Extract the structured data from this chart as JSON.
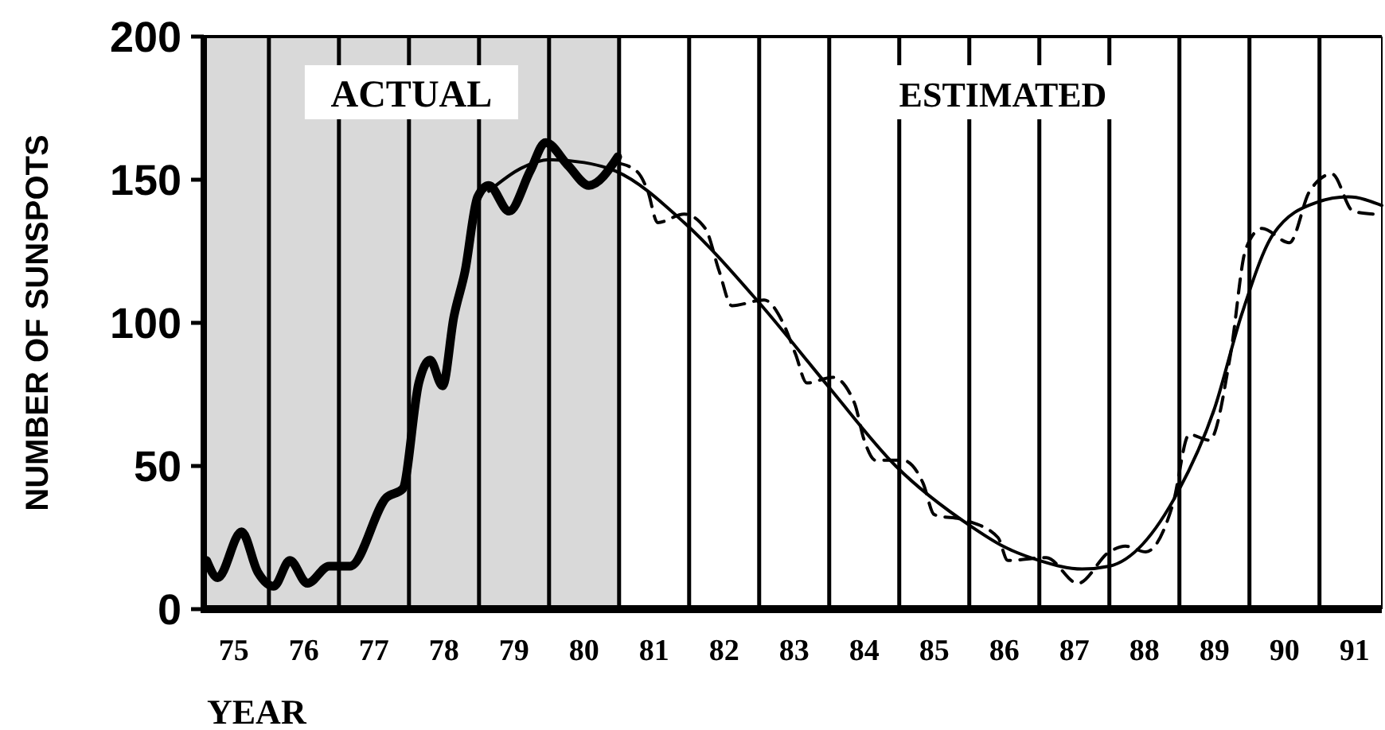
{
  "chart_data": {
    "type": "line",
    "xlabel": "YEAR",
    "ylabel": "NUMBER OF SUNSPOTS",
    "xlim": [
      75.07,
      91.89
    ],
    "ylim": [
      0,
      200
    ],
    "yticks": [
      0,
      50,
      100,
      150,
      200
    ],
    "xticks": [
      {
        "value": 75.5,
        "label": "75"
      },
      {
        "value": 76.5,
        "label": "76"
      },
      {
        "value": 77.5,
        "label": "77"
      },
      {
        "value": 78.5,
        "label": "78"
      },
      {
        "value": 79.5,
        "label": "79"
      },
      {
        "value": 80.5,
        "label": "80"
      },
      {
        "value": 81.5,
        "label": "81"
      },
      {
        "value": 82.5,
        "label": "82"
      },
      {
        "value": 83.5,
        "label": "83"
      },
      {
        "value": 84.5,
        "label": "84"
      },
      {
        "value": 85.5,
        "label": "85"
      },
      {
        "value": 86.5,
        "label": "86"
      },
      {
        "value": 87.5,
        "label": "87"
      },
      {
        "value": 88.5,
        "label": "88"
      },
      {
        "value": 89.5,
        "label": "89"
      },
      {
        "value": 90.5,
        "label": "90"
      },
      {
        "value": 91.5,
        "label": "91"
      }
    ],
    "marker": "none",
    "annotations": [
      "ESTIMATED"
    ],
    "bands": [
      {
        "axis": "x",
        "from": 75.07,
        "to": 81,
        "label": "ACTUAL",
        "color": "#d9d9d9"
      }
    ],
    "ref_lines": [
      {
        "axis": "x",
        "value": 76,
        "color": "#000000"
      },
      {
        "axis": "x",
        "value": 77,
        "color": "#000000"
      },
      {
        "axis": "x",
        "value": 78,
        "color": "#000000"
      },
      {
        "axis": "x",
        "value": 79,
        "color": "#000000"
      },
      {
        "axis": "x",
        "value": 80,
        "color": "#000000"
      },
      {
        "axis": "x",
        "value": 81,
        "color": "#000000"
      },
      {
        "axis": "x",
        "value": 82,
        "color": "#000000"
      },
      {
        "axis": "x",
        "value": 83,
        "color": "#000000"
      },
      {
        "axis": "x",
        "value": 84,
        "color": "#000000"
      },
      {
        "axis": "x",
        "value": 85,
        "color": "#000000"
      },
      {
        "axis": "x",
        "value": 86,
        "color": "#000000"
      },
      {
        "axis": "x",
        "value": 87,
        "color": "#000000"
      },
      {
        "axis": "x",
        "value": 88,
        "color": "#000000"
      },
      {
        "axis": "x",
        "value": 89,
        "color": "#000000"
      },
      {
        "axis": "x",
        "value": 90,
        "color": "#000000"
      },
      {
        "axis": "x",
        "value": 91,
        "color": "#000000"
      }
    ],
    "series": [
      {
        "color": "#000000",
        "line_style": "solid",
        "x": [
          75.11,
          75.27,
          75.61,
          75.84,
          76.07,
          76.3,
          76.55,
          76.86,
          77.16,
          77.68,
          77.91,
          78.14,
          78.3,
          78.48,
          78.64,
          78.8,
          78.98,
          79.14,
          79.43,
          79.73,
          79.95,
          80.27,
          80.57,
          80.98
        ],
        "values": [
          17,
          11,
          27,
          13,
          8,
          17,
          9,
          15,
          15,
          39,
          42,
          79,
          87,
          78,
          102,
          118,
          144,
          148,
          139,
          153,
          163,
          155,
          148,
          158
        ]
      },
      {
        "color": "#000000",
        "line_style": "solid",
        "x": [
          79.14,
          79.6,
          80.0,
          80.5,
          80.95,
          81.93,
          83.0,
          83.98,
          84.95,
          86.02,
          86.48,
          87.0,
          87.61,
          88.0,
          88.98,
          89.5,
          89.89,
          90.34,
          90.95,
          91.41,
          91.89
        ],
        "values": [
          146,
          154,
          157,
          156,
          153,
          135,
          107,
          78,
          50,
          29,
          22,
          17,
          14,
          15,
          41,
          70,
          103,
          131,
          142,
          144,
          141
        ]
      },
      {
        "color": "#000000",
        "line_style": "dashed",
        "x": [
          80.95,
          81.25,
          81.41,
          81.55,
          81.93,
          82.23,
          82.43,
          82.61,
          83.07,
          83.34,
          83.52,
          83.68,
          84.05,
          84.36,
          84.5,
          84.66,
          85.05,
          85.34,
          85.5,
          85.95,
          86.41,
          86.55,
          87.1,
          87.55,
          88.0,
          88.23,
          88.52,
          88.91,
          89.14,
          89.43,
          89.73,
          89.95,
          90.18,
          90.57,
          90.86,
          91.18,
          91.48,
          91.77
        ],
        "values": [
          156,
          153,
          146,
          135,
          138,
          133,
          118,
          106,
          108,
          100,
          89,
          79,
          81,
          72,
          59,
          52,
          52,
          44,
          33,
          31,
          25,
          17,
          18,
          9,
          20,
          22,
          20,
          37,
          61,
          59,
          89,
          126,
          133,
          128,
          146,
          152,
          139,
          138
        ]
      }
    ]
  }
}
